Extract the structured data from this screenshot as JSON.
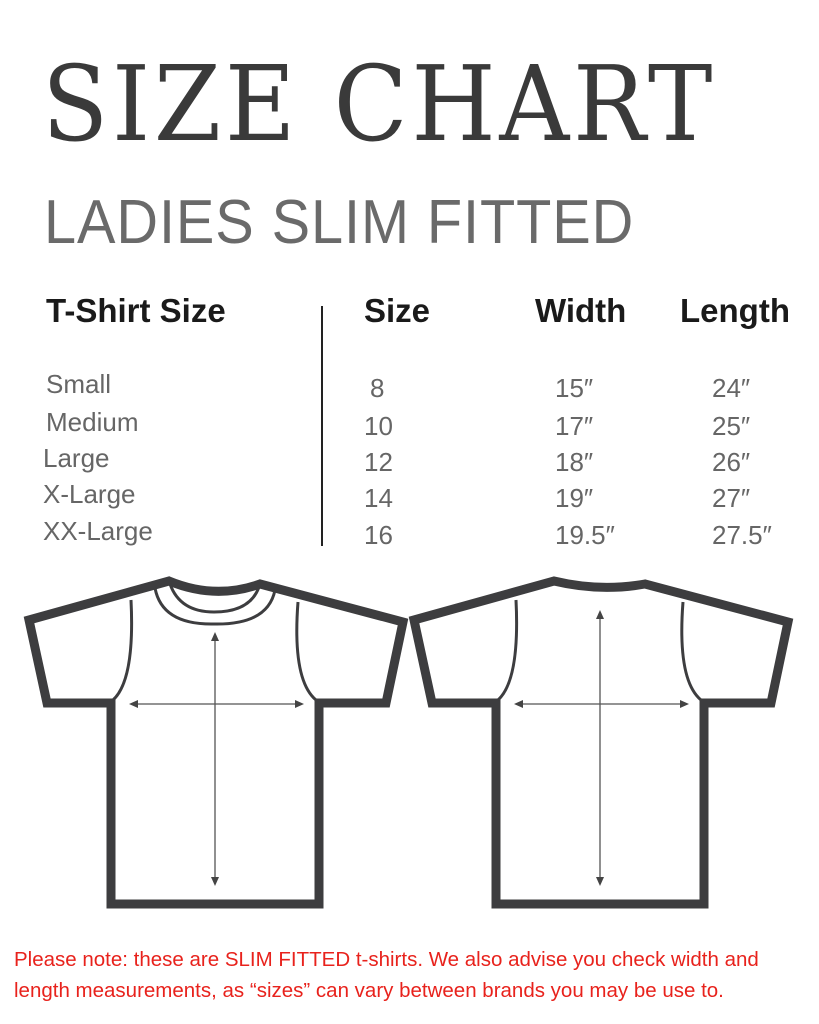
{
  "title": "SIZE CHART",
  "subtitle": "LADIES SLIM FITTED",
  "table": {
    "headers": [
      "T-Shirt Size",
      "Size",
      "Width",
      "Length"
    ],
    "rows": [
      {
        "name": "Small",
        "size": "8",
        "width": "15″",
        "length": "24″"
      },
      {
        "name": "Medium",
        "size": "10",
        "width": "17″",
        "length": "25″"
      },
      {
        "name": "Large",
        "size": "12",
        "width": "18″",
        "length": "26″"
      },
      {
        "name": "X-Large",
        "size": "14",
        "width": "19″",
        "length": "27″"
      },
      {
        "name": "XX-Large",
        "size": "16",
        "width": "19.5″",
        "length": "27.5″"
      }
    ]
  },
  "diagrams": [
    "t-shirt-front",
    "t-shirt-back"
  ],
  "note": "Please note: these are SLIM FITTED t-shirts. We also advise you check width and length measurements, as  “sizes” can vary between brands you may be use to.",
  "colors": {
    "title": "#3a3a3a",
    "outline": "#3d3d3f",
    "note": "#e8221c"
  }
}
